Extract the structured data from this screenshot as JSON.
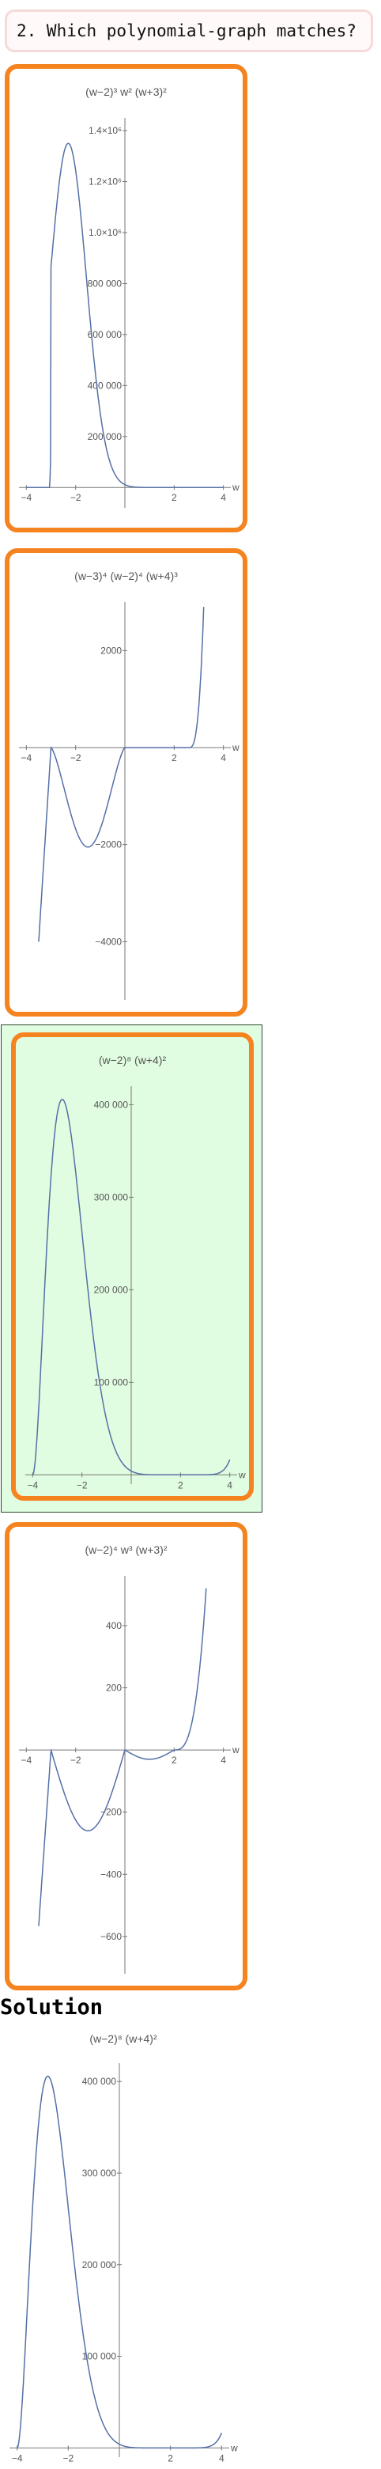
{
  "question": {
    "text": "2. Which polynomial-graph matches?"
  },
  "solution": {
    "heading": "Solution"
  },
  "colors": {
    "card_border": "#f5831f",
    "curve": "#5470a6",
    "correct_bg": "#e1fde1",
    "question_border": "#f7d9d9"
  },
  "graphs": [
    {
      "id": "choice-1",
      "title": "(w−2)³ w² (w+3)²",
      "chart_data": {
        "type": "line",
        "title": "(w−2)³ w² (w+3)²",
        "xlabel": "w",
        "xlim": [
          -4.3,
          4.3
        ],
        "ylim": [
          -80000,
          1450000
        ],
        "x_ticks": [
          -4,
          -2,
          2,
          4
        ],
        "x_tick_labels": [
          "−4",
          "−2",
          "2",
          "4"
        ],
        "y_ticks": [
          200000,
          400000,
          600000,
          800000,
          1000000,
          1200000,
          1400000
        ],
        "y_tick_labels": [
          "200 000",
          "400 000",
          "600 000",
          "800 000",
          "1.0×10⁶",
          "1.2×10⁶",
          "1.4×10⁶"
        ],
        "series": [
          {
            "function": "-(w-2)^3 * w^2 * (w+3)^2",
            "x_domain": [
              -4,
              4
            ]
          }
        ]
      }
    },
    {
      "id": "choice-2",
      "title": "(w−3)⁴ (w−2)⁴ (w+4)³",
      "chart_data": {
        "type": "line",
        "title": "(w−3)⁴ (w−2)⁴ (w+4)³",
        "xlabel": "w",
        "xlim": [
          -4.3,
          4.3
        ],
        "ylim": [
          -5200,
          3000
        ],
        "x_ticks": [
          -4,
          -2,
          2,
          4
        ],
        "x_tick_labels": [
          "−4",
          "−2",
          "2",
          "4"
        ],
        "y_ticks": [
          -4000,
          -2000,
          2000
        ],
        "y_tick_labels": [
          "−4000",
          "−2000",
          "2000"
        ],
        "series": [
          {
            "function": "scaled (w-3)^4 (w-2)^4 (w+4)^3 shape",
            "x_domain": [
              -3.5,
              3.2
            ]
          }
        ]
      }
    },
    {
      "id": "choice-3",
      "title": "(w−2)⁸ (w+4)²",
      "correct": true,
      "chart_data": {
        "type": "line",
        "title": "(w−2)⁸ (w+4)²",
        "xlabel": "w",
        "xlim": [
          -4.3,
          4.3
        ],
        "ylim": [
          -10000,
          420000
        ],
        "x_ticks": [
          -4,
          -2,
          2,
          4
        ],
        "x_tick_labels": [
          "−4",
          "−2",
          "2",
          "4"
        ],
        "y_ticks": [
          100000,
          200000,
          300000,
          400000
        ],
        "y_tick_labels": [
          "100 000",
          "200 000",
          "300 000",
          "400 000"
        ],
        "series": [
          {
            "function": "(w-2)^8 * (w+4)^2",
            "x_domain": [
              -4,
              4
            ]
          }
        ]
      }
    },
    {
      "id": "choice-4",
      "title": "(w−2)⁴ w³ (w+3)²",
      "chart_data": {
        "type": "line",
        "title": "(w−2)⁴ w³ (w+3)²",
        "xlabel": "w",
        "xlim": [
          -4.3,
          4.3
        ],
        "ylim": [
          -720,
          560
        ],
        "x_ticks": [
          -4,
          -2,
          2,
          4
        ],
        "x_tick_labels": [
          "−4",
          "−2",
          "2",
          "4"
        ],
        "y_ticks": [
          -600,
          -400,
          -200,
          200,
          400
        ],
        "y_tick_labels": [
          "−600",
          "−400",
          "−200",
          "200",
          "400"
        ],
        "series": [
          {
            "function": "scaled (w-2)^4 w^3 (w+3)^2 shape",
            "x_domain": [
              -3.5,
              3.3
            ]
          }
        ]
      }
    },
    {
      "id": "solution",
      "title": "(w−2)⁸ (w+4)²",
      "chart_data": {
        "type": "line",
        "title": "(w−2)⁸ (w+4)²",
        "xlabel": "w",
        "xlim": [
          -4.3,
          4.3
        ],
        "ylim": [
          -10000,
          420000
        ],
        "x_ticks": [
          -4,
          -2,
          2,
          4
        ],
        "x_tick_labels": [
          "−4",
          "−2",
          "2",
          "4"
        ],
        "y_ticks": [
          100000,
          200000,
          300000,
          400000
        ],
        "y_tick_labels": [
          "100 000",
          "200 000",
          "300 000",
          "400 000"
        ],
        "series": [
          {
            "function": "(w-2)^8 * (w+4)^2",
            "x_domain": [
              -4,
              4
            ]
          }
        ]
      }
    }
  ]
}
